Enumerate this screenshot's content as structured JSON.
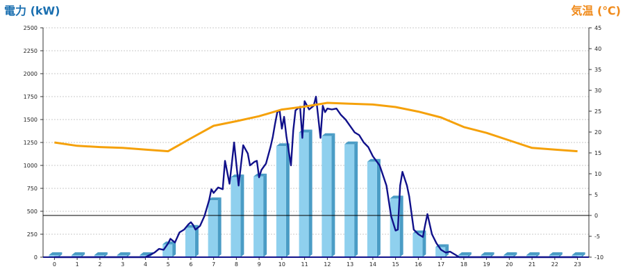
{
  "chart_data": {
    "type": "bar",
    "title_left": "電力 (kW)",
    "title_right": "気温 (℃)",
    "categories": [
      "0",
      "1",
      "2",
      "3",
      "4",
      "5",
      "6",
      "7",
      "8",
      "9",
      "10",
      "11",
      "12",
      "13",
      "14",
      "15",
      "16",
      "17",
      "18",
      "19",
      "20",
      "21",
      "22",
      "23"
    ],
    "ylim_left": [
      0,
      2500
    ],
    "ylim_right": [
      -10,
      45
    ],
    "y_ticks_left": [
      0,
      250,
      500,
      750,
      1000,
      1250,
      1500,
      1750,
      2000,
      2250,
      2500
    ],
    "y_ticks_right": [
      -10,
      -5,
      0,
      5,
      10,
      15,
      20,
      25,
      30,
      35,
      40,
      45
    ],
    "grid": true,
    "series": [
      {
        "kind": "bar",
        "axis": "left",
        "values": [
          0,
          0,
          0,
          0,
          0,
          140,
          320,
          620,
          870,
          880,
          1210,
          1360,
          1320,
          1230,
          1040,
          640,
          260,
          110,
          20,
          0,
          0,
          0,
          0,
          0
        ],
        "color": "#8fd0ee"
      },
      {
        "kind": "line",
        "axis": "left",
        "color": "#10108a",
        "points": [
          [
            0,
            0
          ],
          [
            1,
            0
          ],
          [
            2,
            0
          ],
          [
            3,
            0
          ],
          [
            4,
            0
          ],
          [
            4.4,
            50
          ],
          [
            4.6,
            90
          ],
          [
            4.8,
            80
          ],
          [
            5,
            150
          ],
          [
            5.1,
            200
          ],
          [
            5.3,
            160
          ],
          [
            5.5,
            270
          ],
          [
            5.7,
            300
          ],
          [
            5.9,
            360
          ],
          [
            6,
            380
          ],
          [
            6.1,
            350
          ],
          [
            6.2,
            300
          ],
          [
            6.4,
            340
          ],
          [
            6.6,
            450
          ],
          [
            6.8,
            620
          ],
          [
            6.9,
            740
          ],
          [
            7,
            700
          ],
          [
            7.2,
            760
          ],
          [
            7.4,
            740
          ],
          [
            7.5,
            1050
          ],
          [
            7.7,
            800
          ],
          [
            7.8,
            1020
          ],
          [
            7.9,
            1250
          ],
          [
            8.1,
            780
          ],
          [
            8.3,
            1220
          ],
          [
            8.5,
            1130
          ],
          [
            8.6,
            1000
          ],
          [
            8.8,
            1040
          ],
          [
            8.9,
            1050
          ],
          [
            9,
            870
          ],
          [
            9.1,
            950
          ],
          [
            9.3,
            1020
          ],
          [
            9.5,
            1200
          ],
          [
            9.6,
            1310
          ],
          [
            9.7,
            1450
          ],
          [
            9.8,
            1580
          ],
          [
            9.9,
            1600
          ],
          [
            10,
            1400
          ],
          [
            10.1,
            1530
          ],
          [
            10.2,
            1320
          ],
          [
            10.4,
            1000
          ],
          [
            10.5,
            1380
          ],
          [
            10.6,
            1600
          ],
          [
            10.8,
            1640
          ],
          [
            10.9,
            1300
          ],
          [
            11,
            1700
          ],
          [
            11.2,
            1610
          ],
          [
            11.4,
            1650
          ],
          [
            11.5,
            1750
          ],
          [
            11.7,
            1300
          ],
          [
            11.8,
            1650
          ],
          [
            11.9,
            1580
          ],
          [
            12,
            1620
          ],
          [
            12.2,
            1610
          ],
          [
            12.4,
            1620
          ],
          [
            12.6,
            1550
          ],
          [
            12.8,
            1500
          ],
          [
            13,
            1430
          ],
          [
            13.2,
            1360
          ],
          [
            13.4,
            1330
          ],
          [
            13.6,
            1250
          ],
          [
            13.8,
            1200
          ],
          [
            14,
            1100
          ],
          [
            14.3,
            1000
          ],
          [
            14.6,
            780
          ],
          [
            14.8,
            450
          ],
          [
            15,
            290
          ],
          [
            15.1,
            300
          ],
          [
            15.2,
            780
          ],
          [
            15.3,
            930
          ],
          [
            15.5,
            780
          ],
          [
            15.6,
            660
          ],
          [
            15.8,
            300
          ],
          [
            16,
            250
          ],
          [
            16.2,
            220
          ],
          [
            16.3,
            350
          ],
          [
            16.4,
            470
          ],
          [
            16.6,
            250
          ],
          [
            16.8,
            150
          ],
          [
            17,
            80
          ],
          [
            17.2,
            50
          ],
          [
            17.4,
            60
          ],
          [
            17.6,
            30
          ],
          [
            17.8,
            0
          ],
          [
            18,
            0
          ],
          [
            19,
            0
          ],
          [
            20,
            0
          ],
          [
            21,
            0
          ],
          [
            22,
            0
          ],
          [
            23,
            0
          ]
        ]
      },
      {
        "kind": "line",
        "axis": "right",
        "color": "#f5a10a",
        "points": [
          [
            0,
            17.5
          ],
          [
            1,
            16.7
          ],
          [
            2,
            16.4
          ],
          [
            3,
            16.2
          ],
          [
            4,
            15.8
          ],
          [
            5,
            15.4
          ],
          [
            6,
            18.5
          ],
          [
            7,
            21.5
          ],
          [
            8,
            22.6
          ],
          [
            9,
            23.8
          ],
          [
            10,
            25.4
          ],
          [
            11,
            26.1
          ],
          [
            12,
            27.0
          ],
          [
            13,
            26.8
          ],
          [
            14,
            26.6
          ],
          [
            15,
            26.0
          ],
          [
            16,
            24.9
          ],
          [
            17,
            23.5
          ],
          [
            18,
            21.2
          ],
          [
            19,
            19.8
          ],
          [
            20,
            18.0
          ],
          [
            21,
            16.2
          ],
          [
            22,
            15.8
          ],
          [
            23,
            15.4
          ]
        ]
      }
    ],
    "zero_line_right": 0,
    "colors": {
      "title_left": "#1a6fb0",
      "title_right": "#f08a1a",
      "bar_front": "#8fd0ee",
      "bar_side": "#4a9cc5",
      "bar_top": "#b9e3f6"
    }
  }
}
